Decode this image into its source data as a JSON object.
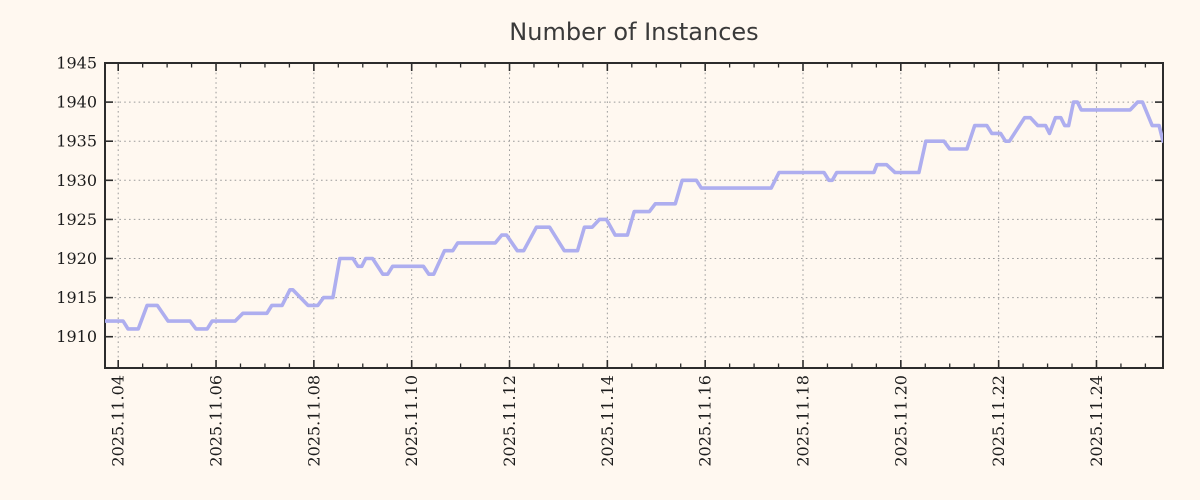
{
  "colors": {
    "background": "#fff8f0",
    "series_line": "#aeaeef",
    "grid": "#9b9b9b",
    "axis": "#2c2c2c",
    "tick_text": "#1c1c1c",
    "title_text": "#3a3a3a"
  },
  "chart_data": {
    "type": "line",
    "title": "Number of Instances",
    "xlabel": "",
    "ylabel": "",
    "grid": true,
    "legend": "none",
    "x_axis": {
      "tick_labels": [
        "2025.11.04",
        "2025.11.06",
        "2025.11.08",
        "2025.11.10",
        "2025.11.12",
        "2025.11.14",
        "2025.11.16",
        "2025.11.18",
        "2025.11.20",
        "2025.11.22",
        "2025.11.24"
      ],
      "tick_days": [
        0,
        2,
        4,
        6,
        8,
        10,
        12,
        14,
        16,
        18,
        20
      ],
      "minor_tick_step_days": 0.5,
      "xlim_days": [
        -0.27,
        21.36
      ],
      "label_rotation_deg": -90
    },
    "y_axis": {
      "ticks": [
        1910,
        1915,
        1920,
        1925,
        1930,
        1935,
        1940,
        1945
      ],
      "ylim": [
        1906,
        1945
      ]
    },
    "series": [
      {
        "name": "instances",
        "points_day_value": [
          [
            -0.27,
            1912
          ],
          [
            0.1,
            1912
          ],
          [
            0.2,
            1911
          ],
          [
            0.41,
            1911
          ],
          [
            0.59,
            1914
          ],
          [
            0.8,
            1914
          ],
          [
            1.02,
            1912
          ],
          [
            1.47,
            1912
          ],
          [
            1.59,
            1911
          ],
          [
            1.82,
            1911
          ],
          [
            1.92,
            1912
          ],
          [
            2.39,
            1912
          ],
          [
            2.55,
            1913
          ],
          [
            3.04,
            1913
          ],
          [
            3.14,
            1914
          ],
          [
            3.35,
            1914
          ],
          [
            3.51,
            1916
          ],
          [
            3.57,
            1916
          ],
          [
            3.88,
            1914
          ],
          [
            4.08,
            1914
          ],
          [
            4.2,
            1915
          ],
          [
            4.39,
            1915
          ],
          [
            4.53,
            1920
          ],
          [
            4.8,
            1920
          ],
          [
            4.9,
            1919
          ],
          [
            4.98,
            1919
          ],
          [
            5.06,
            1920
          ],
          [
            5.2,
            1920
          ],
          [
            5.41,
            1918
          ],
          [
            5.51,
            1918
          ],
          [
            5.61,
            1919
          ],
          [
            6.24,
            1919
          ],
          [
            6.35,
            1918
          ],
          [
            6.45,
            1918
          ],
          [
            6.67,
            1921
          ],
          [
            6.84,
            1921
          ],
          [
            6.94,
            1922
          ],
          [
            7.71,
            1922
          ],
          [
            7.84,
            1923
          ],
          [
            7.94,
            1923
          ],
          [
            8.16,
            1921
          ],
          [
            8.29,
            1921
          ],
          [
            8.55,
            1924
          ],
          [
            8.82,
            1924
          ],
          [
            9.12,
            1921
          ],
          [
            9.39,
            1921
          ],
          [
            9.53,
            1924
          ],
          [
            9.69,
            1924
          ],
          [
            9.84,
            1925
          ],
          [
            9.98,
            1925
          ],
          [
            10.16,
            1923
          ],
          [
            10.41,
            1923
          ],
          [
            10.55,
            1926
          ],
          [
            10.86,
            1926
          ],
          [
            10.98,
            1927
          ],
          [
            11.39,
            1927
          ],
          [
            11.53,
            1930
          ],
          [
            11.82,
            1930
          ],
          [
            11.92,
            1929
          ],
          [
            13.35,
            1929
          ],
          [
            13.51,
            1931
          ],
          [
            14.43,
            1931
          ],
          [
            14.53,
            1930
          ],
          [
            14.6,
            1930
          ],
          [
            14.69,
            1931
          ],
          [
            15.45,
            1931
          ],
          [
            15.51,
            1932
          ],
          [
            15.71,
            1932
          ],
          [
            15.88,
            1931
          ],
          [
            16.37,
            1931
          ],
          [
            16.51,
            1935
          ],
          [
            16.88,
            1935
          ],
          [
            17.0,
            1934
          ],
          [
            17.35,
            1934
          ],
          [
            17.51,
            1937
          ],
          [
            17.76,
            1937
          ],
          [
            17.86,
            1936
          ],
          [
            18.04,
            1936
          ],
          [
            18.14,
            1935
          ],
          [
            18.22,
            1935
          ],
          [
            18.53,
            1938
          ],
          [
            18.65,
            1938
          ],
          [
            18.8,
            1937
          ],
          [
            18.96,
            1937
          ],
          [
            19.04,
            1936
          ],
          [
            19.16,
            1938
          ],
          [
            19.27,
            1938
          ],
          [
            19.35,
            1937
          ],
          [
            19.43,
            1937
          ],
          [
            19.53,
            1940
          ],
          [
            19.61,
            1940
          ],
          [
            19.69,
            1939
          ],
          [
            20.69,
            1939
          ],
          [
            20.84,
            1940
          ],
          [
            20.94,
            1940
          ],
          [
            21.14,
            1937
          ],
          [
            21.28,
            1937
          ],
          [
            21.36,
            1935
          ]
        ]
      }
    ]
  }
}
